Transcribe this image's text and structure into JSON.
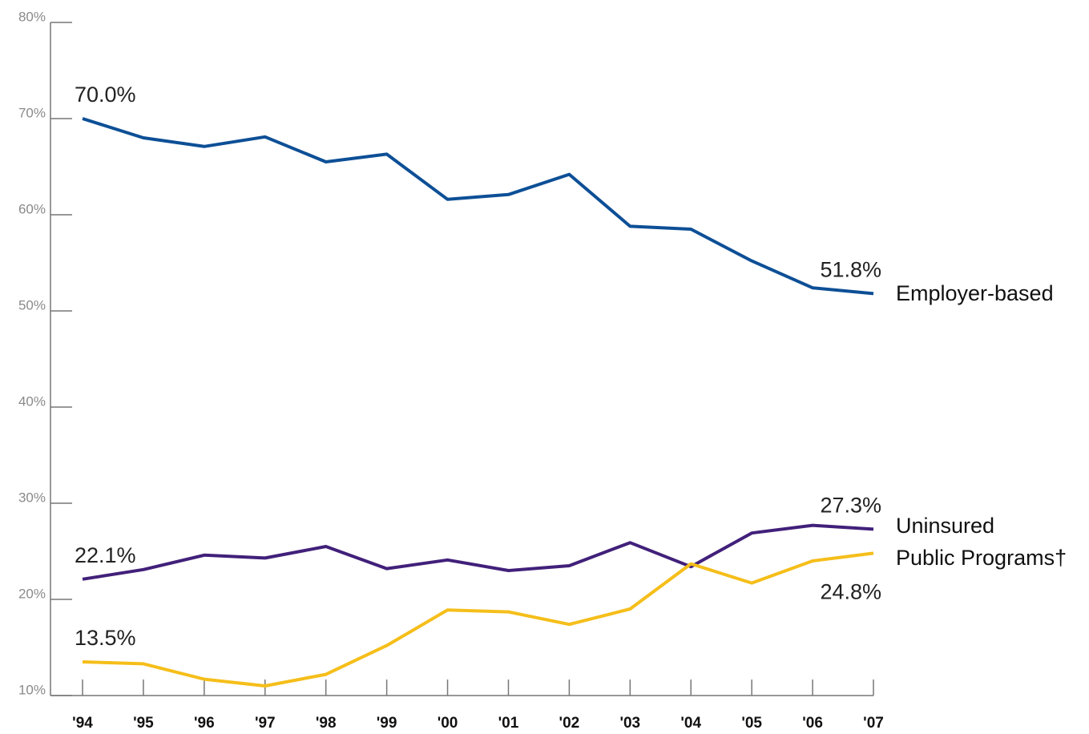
{
  "chart_data": {
    "type": "line",
    "categories": [
      "'94",
      "'95",
      "'96",
      "'97",
      "'98",
      "'99",
      "'00",
      "'01",
      "'02",
      "'03",
      "'04",
      "'05",
      "'06",
      "'07"
    ],
    "series": [
      {
        "name": "Employer-based",
        "color": "#0d4f96",
        "values": [
          70.0,
          68.0,
          67.1,
          68.1,
          65.5,
          66.3,
          61.6,
          62.1,
          64.2,
          58.8,
          58.5,
          55.2,
          52.4,
          51.8
        ],
        "value_labels": [
          "70.0%",
          null,
          null,
          null,
          null,
          null,
          null,
          null,
          null,
          null,
          null,
          null,
          null,
          "51.8%"
        ]
      },
      {
        "name": "Uninsured",
        "color": "#41207a",
        "values": [
          22.1,
          23.1,
          24.6,
          24.3,
          25.5,
          23.2,
          24.1,
          23.0,
          23.5,
          25.9,
          23.4,
          26.9,
          27.7,
          27.3
        ],
        "value_labels": [
          "22.1%",
          null,
          null,
          null,
          null,
          null,
          null,
          null,
          null,
          null,
          null,
          null,
          null,
          "27.3%"
        ]
      },
      {
        "name": "Public Programs†",
        "color": "#f5be1a",
        "values": [
          13.5,
          13.3,
          11.7,
          11.0,
          12.2,
          15.2,
          18.9,
          18.7,
          17.4,
          19.0,
          23.7,
          21.7,
          24.0,
          24.8
        ],
        "value_labels": [
          "13.5%",
          null,
          null,
          null,
          null,
          null,
          null,
          null,
          null,
          null,
          null,
          null,
          null,
          "24.8%"
        ]
      }
    ],
    "ylim": [
      10,
      80
    ],
    "yticks": [
      {
        "value": 10,
        "label": "10%"
      },
      {
        "value": 20,
        "label": "20%"
      },
      {
        "value": 30,
        "label": "30%"
      },
      {
        "value": 40,
        "label": "40%"
      },
      {
        "value": 50,
        "label": "50%"
      },
      {
        "value": 60,
        "label": "60%"
      },
      {
        "value": 70,
        "label": "70%"
      },
      {
        "value": 80,
        "label": "80%"
      }
    ]
  }
}
